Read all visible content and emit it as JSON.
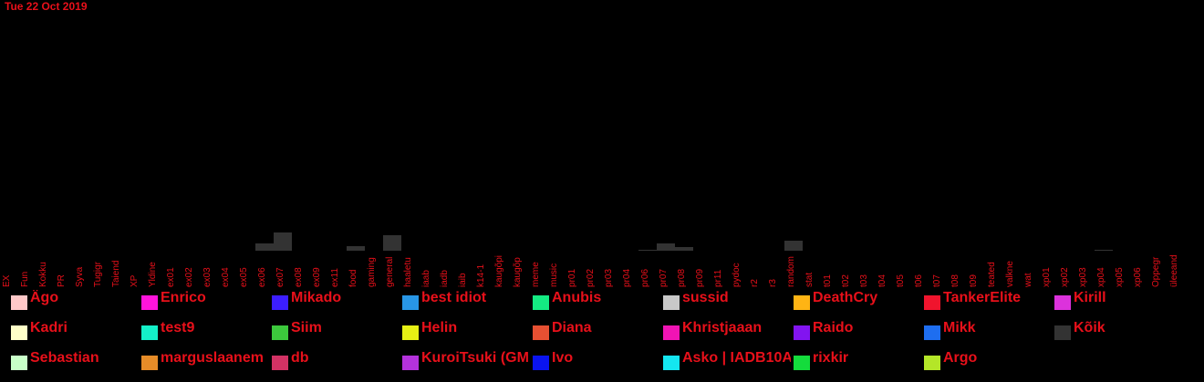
{
  "header": {
    "date": "Tue 22 Oct 2019"
  },
  "chart_data": {
    "type": "bar",
    "title": "",
    "xlabel": "",
    "ylabel": "",
    "categories": [
      "EX",
      "Fun",
      "Kokku",
      "PR",
      "Syva",
      "Tugigr",
      "Taiend",
      "XP",
      "Yldine",
      "ex01",
      "ex02",
      "ex03",
      "ex04",
      "ex05",
      "ex06",
      "ex07",
      "ex08",
      "ex09",
      "ex11",
      "food",
      "gaming",
      "general",
      "haaletu",
      "iaab",
      "iadb",
      "iaib",
      "k14-1",
      "kaugõpi",
      "kaugõp",
      "meme",
      "music",
      "pr01",
      "pr02",
      "pr03",
      "pr04",
      "pr06",
      "pr07",
      "pr08",
      "pr09",
      "pr11",
      "pydoc",
      "r2",
      "r3",
      "random",
      "stat",
      "t01",
      "t02",
      "t03",
      "t04",
      "t05",
      "t06",
      "t07",
      "t08",
      "t09",
      "teated",
      "valkne",
      "wat",
      "xp01",
      "xp02",
      "xp03",
      "xp04",
      "xp05",
      "xp06",
      "Oppegr",
      "üleeand"
    ],
    "series": [
      {
        "values": [
          0,
          0,
          0,
          0,
          0,
          0,
          0,
          0,
          0,
          0,
          0,
          0,
          0,
          0,
          8,
          20,
          0,
          0,
          0,
          5,
          0,
          17,
          0,
          0,
          0,
          0,
          0,
          0,
          0,
          0,
          0,
          0,
          0,
          0,
          0,
          1,
          8,
          4,
          0,
          0,
          0,
          0,
          0,
          11,
          0,
          0,
          0,
          0,
          0,
          0,
          0,
          0,
          0,
          0,
          0,
          0,
          0,
          0,
          0,
          0,
          1,
          0,
          0,
          0,
          0
        ],
        "color": "#333333"
      }
    ],
    "ylim": [
      0,
      270
    ],
    "grid": false,
    "legend_position": "bottom",
    "legend": [
      {
        "name": "Ägo",
        "color": "#ffc8c8"
      },
      {
        "name": "Enrico",
        "color": "#ff14dc"
      },
      {
        "name": "Mikado",
        "color": "#3c1eff"
      },
      {
        "name": "best idiot",
        "color": "#2896e6"
      },
      {
        "name": "Anubis",
        "color": "#14eb82"
      },
      {
        "name": "sussid",
        "color": "#c8c8c8"
      },
      {
        "name": "DeathCry",
        "color": "#ffb414"
      },
      {
        "name": "TankerElite",
        "color": "#f0142d"
      },
      {
        "name": "Kirill",
        "color": "#dc32dc"
      },
      {
        "name": "Kadri",
        "color": "#ffffc8"
      },
      {
        "name": "test9",
        "color": "#14f0c8"
      },
      {
        "name": "Siim",
        "color": "#3cc83c"
      },
      {
        "name": "Helin",
        "color": "#e6f014"
      },
      {
        "name": "Diana",
        "color": "#e65032"
      },
      {
        "name": "Khristjaaan",
        "color": "#f014b4"
      },
      {
        "name": "Raido",
        "color": "#8214f0"
      },
      {
        "name": "Mikk",
        "color": "#1e6ef0"
      },
      {
        "name": "Kõik",
        "color": "#333333"
      },
      {
        "name": "Sebastian",
        "color": "#c8ffc8"
      },
      {
        "name": "marguslaanem",
        "color": "#e68c28"
      },
      {
        "name": "db",
        "color": "#d23264"
      },
      {
        "name": "KuroiTsuki (GM",
        "color": "#b432dc"
      },
      {
        "name": "Ivo",
        "color": "#0a14f0"
      },
      {
        "name": "Asko | IADB10A",
        "color": "#14e6f0"
      },
      {
        "name": "rixkir",
        "color": "#14dc3c"
      },
      {
        "name": "Argo",
        "color": "#b4e628"
      }
    ]
  }
}
